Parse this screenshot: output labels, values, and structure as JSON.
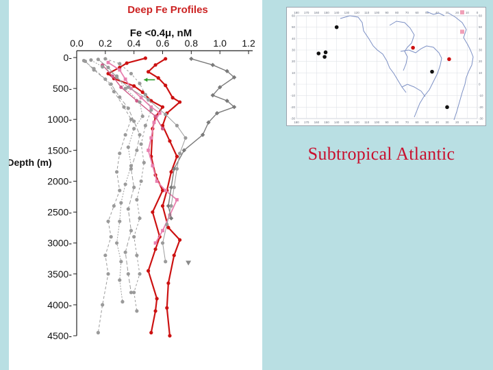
{
  "slide": {
    "region_label": "Subtropical Atlantic",
    "background": "#b9dfe3"
  },
  "chart_data": {
    "type": "line",
    "title": "Deep Fe Profiles",
    "xlabel": "Fe <0.4μ, nM",
    "ylabel": "Depth (m)",
    "xlim": [
      0,
      1.2
    ],
    "ylim": [
      0,
      4500
    ],
    "y_reversed": true,
    "x_ticks": [
      "0.0",
      "0.2",
      "0.4",
      "0.6",
      "0.8",
      "1.0",
      "1.2"
    ],
    "y_ticks": [
      "0",
      "500",
      "1000",
      "1500",
      "2000",
      "2500",
      "3000",
      "3500",
      "4000",
      "4500"
    ],
    "series": [
      {
        "color": "#cc1111",
        "width": 2.2,
        "marker": "circle",
        "points": [
          [
            0.48,
            10
          ],
          [
            0.35,
            90
          ],
          [
            0.3,
            160
          ],
          [
            0.22,
            260
          ],
          [
            0.26,
            340
          ],
          [
            0.4,
            460
          ],
          [
            0.46,
            560
          ],
          [
            0.52,
            700
          ],
          [
            0.6,
            800
          ],
          [
            0.55,
            960
          ],
          [
            0.53,
            1150
          ],
          [
            0.52,
            1600
          ],
          [
            0.55,
            1900
          ],
          [
            0.6,
            2150
          ],
          [
            0.53,
            2500
          ],
          [
            0.58,
            2900
          ],
          [
            0.55,
            3100
          ],
          [
            0.5,
            3450
          ],
          [
            0.56,
            3900
          ],
          [
            0.55,
            4100
          ],
          [
            0.52,
            4450
          ]
        ]
      },
      {
        "color": "#cc1111",
        "width": 2.2,
        "marker": "circle",
        "points": [
          [
            0.62,
            20
          ],
          [
            0.55,
            120
          ],
          [
            0.5,
            230
          ],
          [
            0.57,
            330
          ],
          [
            0.62,
            450
          ],
          [
            0.67,
            650
          ],
          [
            0.72,
            720
          ],
          [
            0.63,
            900
          ],
          [
            0.6,
            1100
          ],
          [
            0.65,
            1350
          ],
          [
            0.7,
            1600
          ],
          [
            0.66,
            1850
          ],
          [
            0.63,
            2150
          ],
          [
            0.6,
            2400
          ],
          [
            0.64,
            2750
          ],
          [
            0.72,
            2950
          ],
          [
            0.68,
            3200
          ],
          [
            0.64,
            3650
          ],
          [
            0.63,
            4050
          ],
          [
            0.65,
            4500
          ]
        ]
      },
      {
        "color": "#e87fae",
        "width": 1.8,
        "marker": "square",
        "points": [
          [
            0.22,
            80
          ],
          [
            0.3,
            200
          ],
          [
            0.34,
            350
          ],
          [
            0.38,
            500
          ],
          [
            0.45,
            650
          ],
          [
            0.52,
            800
          ],
          [
            0.58,
            900
          ],
          [
            0.54,
            1050
          ],
          [
            0.52,
            1300
          ],
          [
            0.5,
            1500
          ],
          [
            0.53,
            1750
          ],
          [
            0.56,
            2000
          ],
          [
            0.62,
            2150
          ],
          [
            0.7,
            2300
          ],
          [
            0.65,
            2550
          ],
          [
            0.6,
            2800
          ],
          [
            0.55,
            3000
          ]
        ]
      },
      {
        "color": "#cf5a88",
        "width": 1.4,
        "marker": "circle",
        "points": [
          [
            0.18,
            120
          ],
          [
            0.25,
            300
          ],
          [
            0.31,
            480
          ],
          [
            0.42,
            700
          ],
          [
            0.55,
            950
          ],
          [
            0.6,
            1150
          ]
        ]
      },
      {
        "color": "#7a7a7a",
        "width": 1.4,
        "marker": "diamond",
        "points": [
          [
            0.8,
            20
          ],
          [
            0.95,
            120
          ],
          [
            1.05,
            220
          ],
          [
            1.1,
            320
          ],
          [
            1.0,
            480
          ],
          [
            0.95,
            610
          ],
          [
            1.05,
            700
          ],
          [
            1.1,
            800
          ],
          [
            0.98,
            900
          ],
          [
            0.92,
            1050
          ],
          [
            0.88,
            1250
          ],
          [
            0.75,
            1500
          ],
          [
            0.68,
            1800
          ],
          [
            0.66,
            2100
          ],
          [
            0.64,
            2400
          ],
          [
            0.66,
            2600
          ]
        ]
      },
      {
        "color": "#9a9a9a",
        "width": 1.0,
        "marker": "circle",
        "dash": "4,3",
        "points": [
          [
            0.05,
            50
          ],
          [
            0.12,
            180
          ],
          [
            0.2,
            350
          ],
          [
            0.26,
            550
          ],
          [
            0.33,
            800
          ],
          [
            0.38,
            1000
          ],
          [
            0.34,
            1250
          ],
          [
            0.3,
            1550
          ],
          [
            0.28,
            1850
          ],
          [
            0.3,
            2150
          ],
          [
            0.26,
            2400
          ],
          [
            0.22,
            2650
          ],
          [
            0.24,
            2900
          ],
          [
            0.2,
            3200
          ],
          [
            0.22,
            3500
          ],
          [
            0.18,
            4000
          ],
          [
            0.15,
            4450
          ]
        ]
      },
      {
        "color": "#9a9a9a",
        "width": 1.0,
        "marker": "circle",
        "dash": "2,2",
        "points": [
          [
            0.1,
            40
          ],
          [
            0.18,
            150
          ],
          [
            0.28,
            300
          ],
          [
            0.34,
            500
          ],
          [
            0.44,
            720
          ],
          [
            0.46,
            950
          ],
          [
            0.4,
            1150
          ],
          [
            0.36,
            1450
          ],
          [
            0.38,
            1750
          ],
          [
            0.34,
            2050
          ],
          [
            0.31,
            2350
          ],
          [
            0.3,
            2650
          ],
          [
            0.28,
            3000
          ],
          [
            0.31,
            3300
          ],
          [
            0.3,
            3600
          ],
          [
            0.32,
            3950
          ]
        ]
      },
      {
        "color": "#9a9a9a",
        "width": 1.0,
        "marker": "circle",
        "dash": "6,3",
        "points": [
          [
            0.06,
            60
          ],
          [
            0.12,
            200
          ],
          [
            0.24,
            430
          ],
          [
            0.3,
            640
          ],
          [
            0.36,
            820
          ],
          [
            0.4,
            1030
          ],
          [
            0.44,
            1250
          ],
          [
            0.42,
            1500
          ],
          [
            0.38,
            1800
          ],
          [
            0.4,
            2100
          ],
          [
            0.36,
            2450
          ],
          [
            0.38,
            2800
          ],
          [
            0.34,
            3150
          ],
          [
            0.36,
            3500
          ],
          [
            0.38,
            3800
          ]
        ]
      },
      {
        "color": "#9a9a9a",
        "width": 1.0,
        "marker": "circle",
        "points": [
          [
            0.15,
            30
          ],
          [
            0.22,
            160
          ],
          [
            0.28,
            320
          ],
          [
            0.36,
            480
          ],
          [
            0.5,
            680
          ],
          [
            0.62,
            920
          ],
          [
            0.7,
            1100
          ],
          [
            0.76,
            1300
          ],
          [
            0.72,
            1550
          ],
          [
            0.7,
            1800
          ],
          [
            0.68,
            2100
          ],
          [
            0.66,
            2400
          ],
          [
            0.63,
            2700
          ],
          [
            0.6,
            3000
          ],
          [
            0.62,
            3300
          ]
        ]
      },
      {
        "color": "#9a9a9a",
        "width": 1.0,
        "marker": "circle",
        "dash": "3,3",
        "points": [
          [
            0.2,
            20
          ],
          [
            0.3,
            100
          ],
          [
            0.38,
            260
          ],
          [
            0.44,
            420
          ],
          [
            0.48,
            600
          ],
          [
            0.52,
            850
          ],
          [
            0.48,
            1100
          ],
          [
            0.45,
            1400
          ],
          [
            0.47,
            1700
          ],
          [
            0.45,
            2000
          ],
          [
            0.42,
            2300
          ],
          [
            0.44,
            2600
          ],
          [
            0.4,
            2900
          ],
          [
            0.42,
            3200
          ],
          [
            0.44,
            3500
          ],
          [
            0.4,
            3800
          ],
          [
            0.42,
            4100
          ]
        ]
      },
      {
        "color": "#8a8a8a",
        "width": 1.0,
        "marker": "triangle",
        "points": [
          [
            0.78,
            3320
          ]
        ]
      }
    ],
    "annotation_arrow": {
      "color": "#2b9d2b",
      "x": 0.47,
      "y": 360
    }
  },
  "map": {
    "lon_labels": [
      "180",
      "170",
      "160",
      "150",
      "140",
      "130",
      "120",
      "110",
      "100",
      "90",
      "80",
      "70",
      "60",
      "50",
      "40",
      "30",
      "20",
      "10",
      "0"
    ],
    "lat_labels": [
      "60",
      "50",
      "40",
      "30",
      "20",
      "10",
      "0",
      "-10",
      "-20",
      "-30"
    ],
    "stations": [
      {
        "lon": -158,
        "lat": 27,
        "color": "#111111"
      },
      {
        "lon": -152,
        "lat": 24,
        "color": "#111111"
      },
      {
        "lon": -151,
        "lat": 28,
        "color": "#111111"
      },
      {
        "lon": -140,
        "lat": 50,
        "color": "#111111"
      },
      {
        "lon": -64,
        "lat": 32,
        "color": "#cc1111"
      },
      {
        "lon": -45,
        "lat": 11,
        "color": "#111111"
      },
      {
        "lon": -28,
        "lat": 22,
        "color": "#cc1111"
      },
      {
        "lon": -30,
        "lat": -20,
        "color": "#111111"
      },
      {
        "lon": -15,
        "lat": 63,
        "color": "#f0a0b8"
      },
      {
        "lon": -15,
        "lat": 46,
        "color": "#f0a0b8"
      }
    ]
  }
}
